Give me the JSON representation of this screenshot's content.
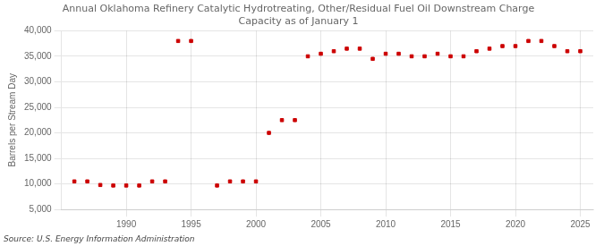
{
  "chart_data": {
    "type": "scatter",
    "title": "Annual Oklahoma Refinery Catalytic Hydrotreating, Other/Residual Fuel Oil Downstream Charge\nCapacity as of January 1",
    "ylabel": "Barrels per Stream Day",
    "annotations": [
      "Source: U.S. Energy Information Administration"
    ],
    "color": "#cc0000",
    "marker": "square",
    "grid": true,
    "xlim": [
      1985,
      2026
    ],
    "xticks": [
      1990,
      1995,
      2000,
      2005,
      2010,
      2015,
      2020,
      2025
    ],
    "ylim": [
      5000,
      40000
    ],
    "yticks": [
      {
        "value": 5000,
        "label": "5,000"
      },
      {
        "value": 10000,
        "label": "10,000"
      },
      {
        "value": 15000,
        "label": "15,000"
      },
      {
        "value": 20000,
        "label": "20,000"
      },
      {
        "value": 25000,
        "label": "25,000"
      },
      {
        "value": 30000,
        "label": "30,000"
      },
      {
        "value": 35000,
        "label": "35,000"
      },
      {
        "value": 40000,
        "label": "40,000"
      }
    ],
    "x": [
      1986,
      1987,
      1988,
      1989,
      1990,
      1991,
      1992,
      1993,
      1994,
      1995,
      1997,
      1998,
      1999,
      2000,
      2001,
      2002,
      2003,
      2004,
      2005,
      2006,
      2007,
      2008,
      2009,
      2010,
      2011,
      2012,
      2013,
      2014,
      2015,
      2016,
      2017,
      2018,
      2019,
      2020,
      2021,
      2022,
      2023,
      2024,
      2025
    ],
    "values": [
      10500,
      10500,
      9800,
      9700,
      9700,
      9700,
      10500,
      10500,
      38000,
      38000,
      9700,
      10500,
      10500,
      10500,
      20000,
      22500,
      22500,
      35000,
      35500,
      36000,
      36500,
      36500,
      34500,
      35500,
      35500,
      35000,
      35000,
      35500,
      35000,
      35000,
      36000,
      36500,
      37000,
      37000,
      38000,
      38000,
      37000,
      36000,
      36000
    ]
  }
}
